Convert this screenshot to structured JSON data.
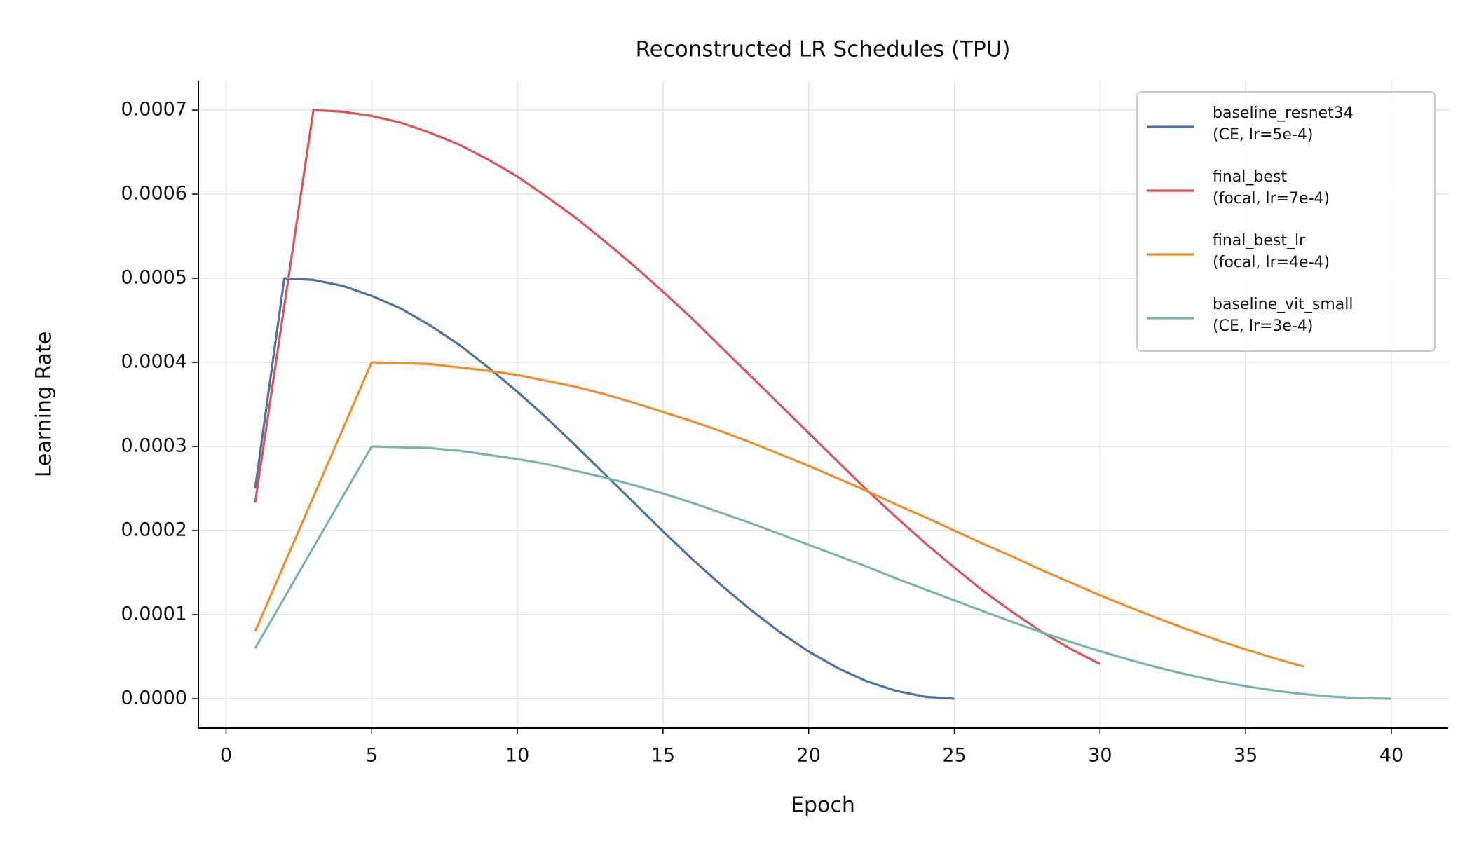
{
  "chart_data": {
    "type": "line",
    "title": "Reconstructed LR Schedules (TPU)",
    "x_label": "Epoch",
    "y_label": "Learning Rate",
    "grid": true,
    "legend": "upper right",
    "xlim": [
      -0.95,
      41.95
    ],
    "xticks": [
      0,
      5,
      10,
      15,
      20,
      25,
      30,
      35,
      40
    ],
    "ylim": [
      -3.5e-05,
      0.000735
    ],
    "yticks": [
      {
        "value": 0,
        "label": "0.0000"
      },
      0.0001,
      0.0002,
      0.0003,
      0.0004,
      0.0005,
      0.0006,
      0.0007
    ],
    "series": [
      {
        "name": "baseline_resnet34\n(CE, lr=5e-4)",
        "color": "#4e72a5",
        "x": [
          1,
          2,
          3,
          4,
          5,
          6,
          7,
          8,
          9,
          10,
          11,
          12,
          13,
          14,
          15,
          16,
          17,
          18,
          19,
          20,
          21,
          22,
          23,
          24,
          25
        ],
        "values": [
          0.00025,
          0.0005,
          0.000498,
          0.000491,
          0.000479,
          0.000464,
          0.000444,
          0.000421,
          0.000394,
          0.000365,
          0.000334,
          0.000301,
          0.000267,
          0.000233,
          0.000199,
          0.000166,
          0.000135,
          0.000106,
          7.94e-05,
          5.61e-05,
          3.64e-05,
          2.07e-05,
          9.3e-06,
          2.3e-06,
          0
        ]
      },
      {
        "name": "final_best\n(focal, lr=7e-4)",
        "color": "#dd5458",
        "x": [
          1,
          2,
          3,
          4,
          5,
          6,
          7,
          8,
          9,
          10,
          11,
          12,
          13,
          14,
          15,
          16,
          17,
          18,
          19,
          20,
          21,
          22,
          23,
          24,
          25,
          26,
          27,
          28,
          29,
          30
        ],
        "values": [
          0.000233,
          0.000467,
          0.0007,
          0.000698,
          0.000693,
          0.000685,
          0.000673,
          0.000659,
          0.000641,
          0.000621,
          0.000597,
          0.000572,
          0.000544,
          0.000515,
          0.000484,
          0.000452,
          0.000418,
          0.000384,
          0.00035,
          0.000316,
          0.000282,
          0.000248,
          0.000216,
          0.000185,
          0.000156,
          0.000128,
          0.000103,
          7.95e-05,
          5.9e-05,
          4.13e-05
        ]
      },
      {
        "name": "final_best_lr\n(focal, lr=4e-4)",
        "color": "#f08e2e",
        "x": [
          1,
          2,
          3,
          4,
          5,
          6,
          7,
          8,
          9,
          10,
          11,
          12,
          13,
          14,
          15,
          16,
          17,
          18,
          19,
          20,
          21,
          22,
          23,
          24,
          25,
          26,
          27,
          28,
          29,
          30,
          31,
          32,
          33,
          34,
          35,
          36,
          37
        ],
        "values": [
          8e-05,
          0.00016,
          0.00024,
          0.00032,
          0.0004,
          0.000399,
          0.000398,
          0.000394,
          0.00039,
          0.000385,
          0.000378,
          0.000371,
          0.000362,
          0.000352,
          0.000341,
          0.00033,
          0.000318,
          0.000305,
          0.000291,
          0.000277,
          0.000262,
          0.000247,
          0.000231,
          0.000216,
          0.0002,
          0.000184,
          0.000169,
          0.000153,
          0.000138,
          0.000123,
          0.000109,
          9.55e-05,
          8.24e-05,
          7.01e-05,
          5.86e-05,
          4.79e-05,
          3.82e-05
        ]
      },
      {
        "name": "baseline_vit_small\n(CE, lr=3e-4)",
        "color": "#78b5b0",
        "x": [
          1,
          2,
          3,
          4,
          5,
          6,
          7,
          8,
          9,
          10,
          11,
          12,
          13,
          14,
          15,
          16,
          17,
          18,
          19,
          20,
          21,
          22,
          23,
          24,
          25,
          26,
          27,
          28,
          29,
          30,
          31,
          32,
          33,
          34,
          35,
          36,
          37,
          38,
          39,
          40
        ],
        "values": [
          6e-05,
          0.00012,
          0.00018,
          0.00024,
          0.0003,
          0.000299,
          0.000298,
          0.000295,
          0.00029,
          0.000285,
          0.000279,
          0.000271,
          0.000263,
          0.000254,
          0.000244,
          0.000233,
          0.000221,
          0.000209,
          0.000196,
          0.000183,
          0.00017,
          0.000157,
          0.000143,
          0.00013,
          0.000117,
          0.000104,
          9.11e-05,
          7.89e-05,
          6.74e-05,
          5.65e-05,
          4.63e-05,
          3.7e-05,
          2.87e-05,
          2.12e-05,
          1.49e-05,
          9.6e-06,
          5.4e-06,
          2.4e-06,
          6e-07,
          0
        ]
      }
    ]
  }
}
